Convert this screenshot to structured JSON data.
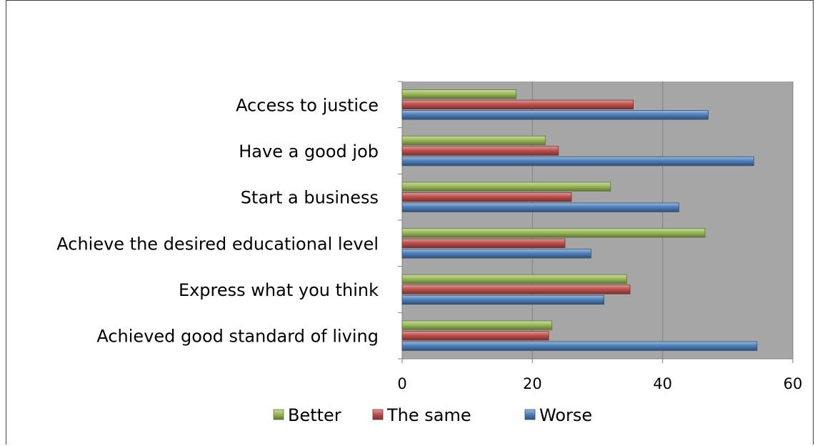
{
  "chart_data": {
    "type": "bar",
    "orientation": "horizontal",
    "title": "",
    "xlabel": "",
    "ylabel": "",
    "xlim": [
      0,
      60
    ],
    "xticks": [
      0,
      20,
      40,
      60
    ],
    "grid": true,
    "legend_position": "bottom",
    "categories": [
      "Access to justice",
      "Have a good job",
      "Start a business",
      "Achieve the desired educational level",
      "Express what you think",
      "Achieved good standard of living"
    ],
    "series": [
      {
        "name": "Better",
        "color": "#9bbb59",
        "values": [
          17.5,
          22,
          32,
          46.5,
          34.5,
          23
        ]
      },
      {
        "name": "The same",
        "color": "#c0504d",
        "values": [
          35.5,
          24,
          26,
          25,
          35,
          22.5
        ]
      },
      {
        "name": "Worse",
        "color": "#4f81bd",
        "values": [
          47,
          54,
          42.5,
          29,
          31,
          54.5
        ]
      }
    ]
  }
}
